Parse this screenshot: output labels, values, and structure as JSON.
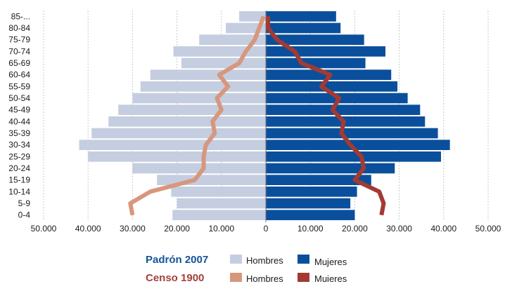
{
  "chart_data": {
    "type": "bar",
    "orientation": "horizontal-pyramid",
    "categories": [
      "0-4",
      "5-9",
      "10-14",
      "15-19",
      "20-24",
      "25-29",
      "30-34",
      "35-39",
      "40-44",
      "45-49",
      "50-54",
      "55-59",
      "60-64",
      "65-69",
      "70-74",
      "75-79",
      "80-84",
      "85-..."
    ],
    "series": [
      {
        "name": "Hombres",
        "group": "Padrón 2007",
        "side": "left",
        "kind": "bar",
        "color": "#c5cde0",
        "values": [
          21000,
          20000,
          21300,
          24500,
          30000,
          40000,
          42000,
          39200,
          35400,
          33200,
          30000,
          28200,
          26000,
          19000,
          20800,
          15000,
          9000,
          6000
        ]
      },
      {
        "name": "Mujeres",
        "group": "Padrón 2007",
        "side": "right",
        "kind": "bar",
        "color": "#0a4f9c",
        "values": [
          20000,
          19000,
          20500,
          23700,
          29000,
          39400,
          41400,
          38700,
          35800,
          34700,
          31900,
          29600,
          28200,
          22400,
          26900,
          22100,
          16800,
          15800
        ]
      },
      {
        "name": "Hombres",
        "group": "Censo 1900",
        "side": "left",
        "kind": "line",
        "color": "#d7977d",
        "values": [
          30000,
          30500,
          26000,
          16000,
          14000,
          14000,
          13500,
          11500,
          12000,
          10000,
          11000,
          8500,
          10500,
          6000,
          4500,
          2500,
          1500,
          500
        ]
      },
      {
        "name": "Mujeres",
        "group": "Censo 1900",
        "side": "right",
        "kind": "line",
        "color": "#a33a32",
        "values": [
          26000,
          26500,
          25500,
          20000,
          22000,
          21500,
          19000,
          17000,
          17500,
          15000,
          16500,
          12500,
          14500,
          8000,
          6500,
          2500,
          500,
          500
        ]
      }
    ],
    "xticks": [
      "50.000",
      "40.000",
      "30.000",
      "20.000",
      "10.000",
      "0",
      "10.000",
      "20.000",
      "30.000",
      "40.000",
      "50.000"
    ],
    "xlim": [
      -50000,
      50000
    ],
    "grid": "vertical",
    "legend": {
      "placement": "bottom",
      "rows": [
        {
          "title": "Padrón 2007",
          "title_color": "#14539a",
          "items": [
            {
              "label": "Hombres",
              "color": "#c5cde0"
            },
            {
              "label": "Mujeres",
              "color": "#0a4f9c"
            }
          ]
        },
        {
          "title": "Censo 1900",
          "title_color": "#a6403a",
          "items": [
            {
              "label": "Hombres",
              "color": "#d7977d"
            },
            {
              "label": "Muieres",
              "color": "#a33a32"
            }
          ]
        }
      ]
    }
  }
}
